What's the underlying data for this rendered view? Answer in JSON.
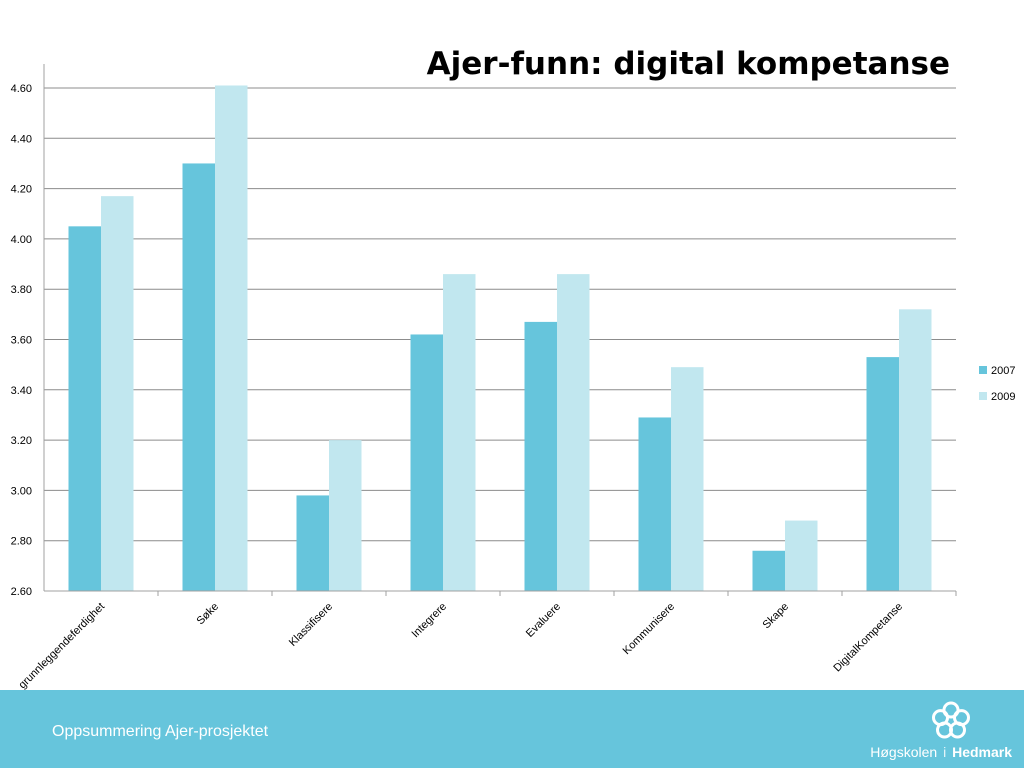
{
  "slide": {
    "title": "Ajer-funn: digital kompetanse",
    "footer_text": "Oppsummering Ajer-prosjektet",
    "logo": {
      "name_light": "Høgskolen",
      "separator": "i",
      "name_bold": "Hedmark"
    }
  },
  "colors": {
    "series_2007": "#66C5DC",
    "series_2009": "#C1E7EF",
    "footer_band": "#66C5DC",
    "gridline": "#8C8C8C",
    "axis": "#A0A0A0"
  },
  "chart_data": {
    "type": "bar",
    "title": "",
    "xlabel": "",
    "ylabel": "",
    "categories": [
      "grunnleggendeferdighet",
      "Søke",
      "Klassifisere",
      "Integrere",
      "Evaluere",
      "Kommunisere",
      "Skape",
      "DigitalKompetanse"
    ],
    "series": [
      {
        "name": "2007",
        "values": [
          4.05,
          4.3,
          2.98,
          3.62,
          3.67,
          3.29,
          2.76,
          3.53
        ]
      },
      {
        "name": "2009",
        "values": [
          4.17,
          4.61,
          3.2,
          3.86,
          3.86,
          3.49,
          2.88,
          3.72
        ]
      }
    ],
    "ylim": [
      2.6,
      4.6
    ],
    "yticks": [
      "2.60",
      "2.80",
      "3.00",
      "3.20",
      "3.40",
      "3.60",
      "3.80",
      "4.00",
      "4.20",
      "4.40",
      "4.60"
    ],
    "grid": true,
    "legend": "right"
  }
}
